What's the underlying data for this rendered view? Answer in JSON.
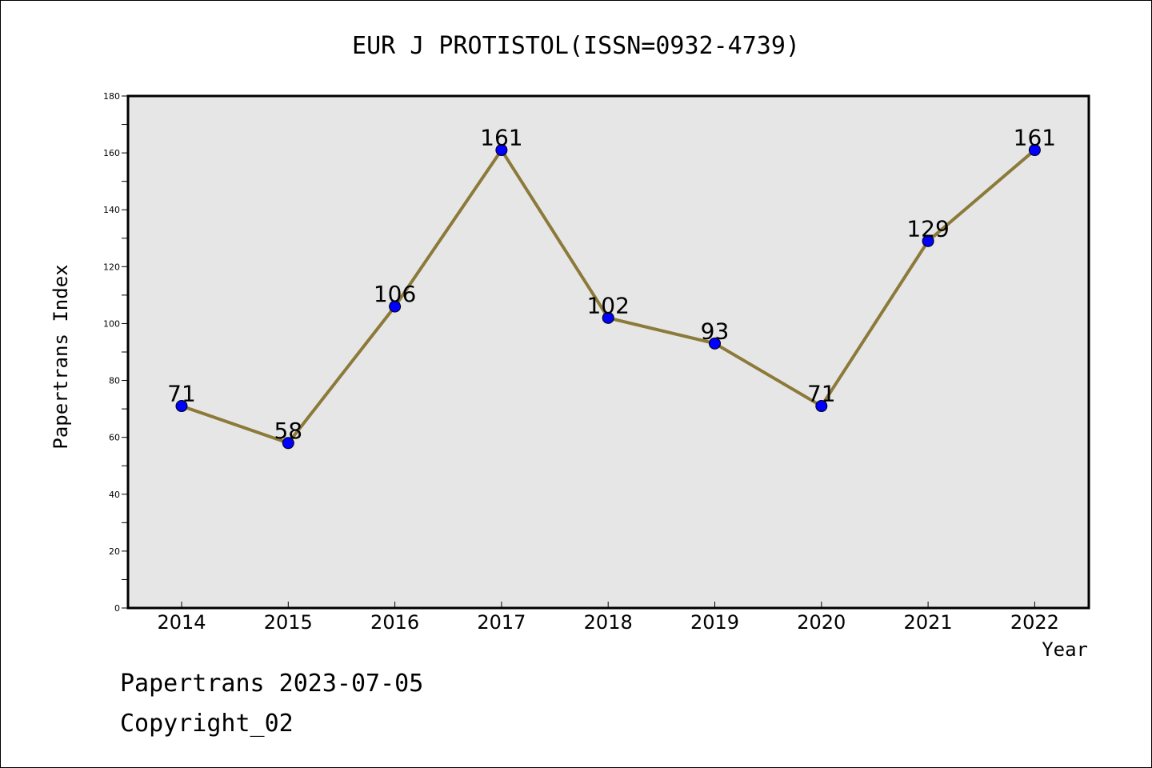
{
  "chart_data": {
    "type": "line",
    "title": "EUR J PROTISTOL(ISSN=0932-4739)",
    "xlabel": "Year",
    "ylabel": "Papertrans Index",
    "categories": [
      "2014",
      "2015",
      "2016",
      "2017",
      "2018",
      "2019",
      "2020",
      "2021",
      "2022"
    ],
    "series": [
      {
        "values": [
          71,
          58,
          106,
          161,
          102,
          93,
          71,
          129,
          161
        ]
      }
    ],
    "data_labels": [
      "71",
      "58",
      "106",
      "161",
      "102",
      "93",
      "71",
      "129",
      "161"
    ],
    "ylim": [
      0,
      180
    ],
    "y_ticks": [
      "0",
      "20",
      "40",
      "60",
      "80",
      "100",
      "120",
      "140",
      "160",
      "180"
    ],
    "grid": false,
    "line_color": "#8b7a3a",
    "marker_color": "#0000ff",
    "plot_background": "#e6e6e6"
  },
  "footer": {
    "line1": "Papertrans 2023-07-05",
    "line2": "Copyright_02"
  }
}
